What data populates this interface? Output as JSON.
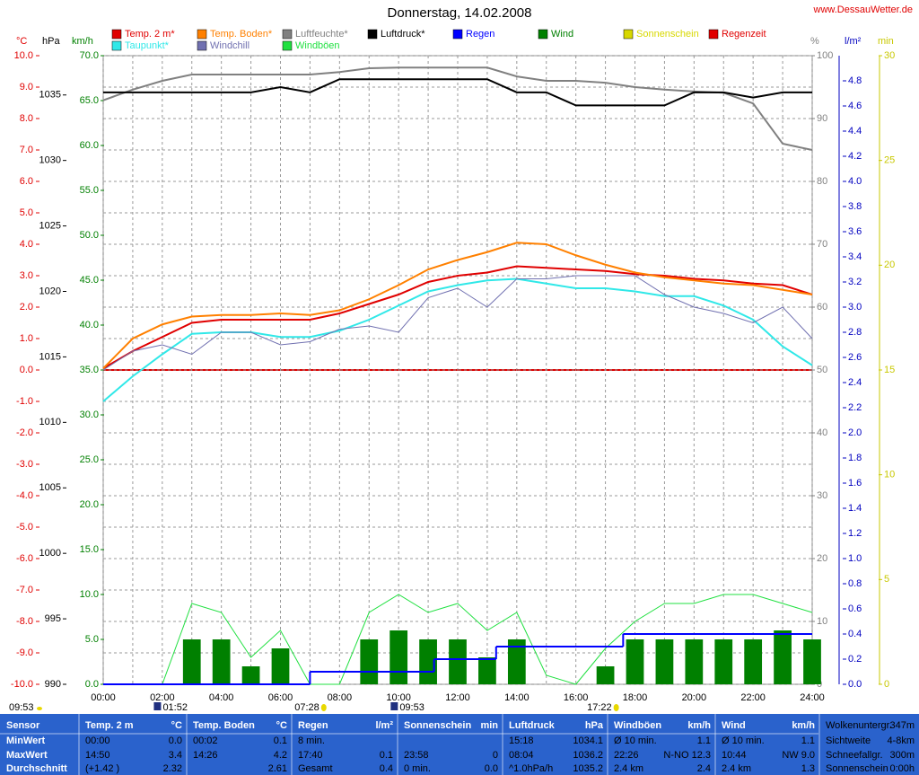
{
  "chart_data": {
    "type": "weather",
    "title": "Donnerstag, 14.02.2008",
    "site": "www.DessauWetter.de",
    "x": [
      0,
      1,
      2,
      3,
      4,
      5,
      6,
      7,
      8,
      9,
      10,
      11,
      12,
      13,
      14,
      15,
      16,
      17,
      18,
      19,
      20,
      21,
      22,
      23,
      24
    ],
    "xlim": [
      0,
      24
    ],
    "xticks": [
      {
        "value": 0,
        "label": "00:00"
      },
      {
        "value": 2,
        "label": "02:00"
      },
      {
        "value": 4,
        "label": "04:00"
      },
      {
        "value": 6,
        "label": "06:00"
      },
      {
        "value": 8,
        "label": "08:00"
      },
      {
        "value": 10,
        "label": "10:00"
      },
      {
        "value": 12,
        "label": "12:00"
      },
      {
        "value": 14,
        "label": "14:00"
      },
      {
        "value": 16,
        "label": "16:00"
      },
      {
        "value": 18,
        "label": "18:00"
      },
      {
        "value": 20,
        "label": "20:00"
      },
      {
        "value": 22,
        "label": "22:00"
      },
      {
        "value": 24,
        "label": "24:00"
      }
    ],
    "xminor": [
      1,
      3,
      5,
      7,
      9,
      11,
      13,
      15,
      17,
      19,
      21,
      23
    ],
    "axes": [
      {
        "key": "temp",
        "label": "°C",
        "color": "#e00000",
        "lim": [
          -10,
          10
        ],
        "grid": true,
        "ticks": [
          {
            "value": -10,
            "label": "-10.0"
          },
          {
            "value": -9,
            "label": "-9.0"
          },
          {
            "value": -8,
            "label": "-8.0"
          },
          {
            "value": -7,
            "label": "-7.0"
          },
          {
            "value": -6,
            "label": "-6.0"
          },
          {
            "value": -5,
            "label": "-5.0"
          },
          {
            "value": -4,
            "label": "-4.0"
          },
          {
            "value": -3,
            "label": "-3.0"
          },
          {
            "value": -2,
            "label": "-2.0"
          },
          {
            "value": -1,
            "label": "-1.0"
          },
          {
            "value": 0,
            "label": "0.0"
          },
          {
            "value": 1,
            "label": "1.0"
          },
          {
            "value": 2,
            "label": "2.0"
          },
          {
            "value": 3,
            "label": "3.0"
          },
          {
            "value": 4,
            "label": "4.0"
          },
          {
            "value": 5,
            "label": "5.0"
          },
          {
            "value": 6,
            "label": "6.0"
          },
          {
            "value": 7,
            "label": "7.0"
          },
          {
            "value": 8,
            "label": "8.0"
          },
          {
            "value": 9,
            "label": "9.0"
          },
          {
            "value": 10,
            "label": "10.0"
          }
        ]
      },
      {
        "key": "hpa",
        "label": "hPa",
        "color": "#000000",
        "lim": [
          990,
          1038
        ],
        "grid": false,
        "ticks": [
          990,
          995,
          1000,
          1005,
          1010,
          1015,
          1020,
          1025,
          1030,
          1035
        ]
      },
      {
        "key": "kmh",
        "label": "km/h",
        "color": "#008000",
        "lim": [
          0,
          70
        ],
        "grid": false,
        "ticks": [
          {
            "value": 0,
            "label": "0.0"
          },
          {
            "value": 5,
            "label": "5.0"
          },
          {
            "value": 10,
            "label": "10.0"
          },
          {
            "value": 15,
            "label": "15.0"
          },
          {
            "value": 20,
            "label": "20.0"
          },
          {
            "value": 25,
            "label": "25.0"
          },
          {
            "value": 30,
            "label": "30.0"
          },
          {
            "value": 35,
            "label": "35.0"
          },
          {
            "value": 40,
            "label": "40.0"
          },
          {
            "value": 45,
            "label": "45.0"
          },
          {
            "value": 50,
            "label": "50.0"
          },
          {
            "value": 55,
            "label": "55.0"
          },
          {
            "value": 60,
            "label": "60.0"
          },
          {
            "value": 65,
            "label": "65.0"
          },
          {
            "value": 70,
            "label": "70.0"
          }
        ]
      },
      {
        "key": "pct",
        "label": "%",
        "color": "#808080",
        "lim": [
          0,
          100
        ],
        "grid": false,
        "ticks": [
          0,
          10,
          20,
          30,
          40,
          50,
          60,
          70,
          80,
          90,
          100
        ]
      },
      {
        "key": "lm2",
        "label": "l/m²",
        "color": "#0000c0",
        "lim": [
          0,
          5
        ],
        "grid": false,
        "ticks": [
          {
            "value": 0,
            "label": "0.0"
          },
          {
            "value": 0.2,
            "label": "0.2"
          },
          {
            "value": 0.4,
            "label": "0.4"
          },
          {
            "value": 0.6,
            "label": "0.6"
          },
          {
            "value": 0.8,
            "label": "0.8"
          },
          {
            "value": 1,
            "label": "1.0"
          },
          {
            "value": 1.2,
            "label": "1.2"
          },
          {
            "value": 1.4,
            "label": "1.4"
          },
          {
            "value": 1.6,
            "label": "1.6"
          },
          {
            "value": 1.8,
            "label": "1.8"
          },
          {
            "value": 2,
            "label": "2.0"
          },
          {
            "value": 2.2,
            "label": "2.2"
          },
          {
            "value": 2.4,
            "label": "2.4"
          },
          {
            "value": 2.6,
            "label": "2.6"
          },
          {
            "value": 2.8,
            "label": "2.8"
          },
          {
            "value": 3,
            "label": "3.0"
          },
          {
            "value": 3.2,
            "label": "3.2"
          },
          {
            "value": 3.4,
            "label": "3.4"
          },
          {
            "value": 3.6,
            "label": "3.6"
          },
          {
            "value": 3.8,
            "label": "3.8"
          },
          {
            "value": 4,
            "label": "4.0"
          },
          {
            "value": 4.2,
            "label": "4.2"
          },
          {
            "value": 4.4,
            "label": "4.4"
          },
          {
            "value": 4.6,
            "label": "4.6"
          },
          {
            "value": 4.8,
            "label": "4.8"
          }
        ]
      },
      {
        "key": "min",
        "label": "min",
        "color": "#c8c800",
        "lim": [
          0,
          30
        ],
        "grid": false,
        "ticks": [
          0,
          5,
          10,
          15,
          20,
          25,
          30
        ]
      }
    ],
    "series": [
      {
        "name": "Temp. 2 m*",
        "color": "#e00000",
        "axis": "temp",
        "kind": "line",
        "values": [
          0.05,
          0.6,
          1.05,
          1.5,
          1.6,
          1.6,
          1.6,
          1.6,
          1.8,
          2.1,
          2.4,
          2.8,
          3.0,
          3.1,
          3.3,
          3.25,
          3.2,
          3.15,
          3.05,
          3.0,
          2.9,
          2.85,
          2.75,
          2.7,
          2.4
        ]
      },
      {
        "name": "Temp. Boden*",
        "color": "#ff8000",
        "axis": "temp",
        "kind": "line",
        "values": [
          0.05,
          1.0,
          1.45,
          1.7,
          1.75,
          1.75,
          1.8,
          1.75,
          1.9,
          2.25,
          2.7,
          3.2,
          3.5,
          3.75,
          4.05,
          4.0,
          3.65,
          3.35,
          3.1,
          2.95,
          2.85,
          2.75,
          2.7,
          2.55,
          2.4
        ]
      },
      {
        "name": "Luftfeuchte*",
        "color": "#808080",
        "axis": "pct",
        "kind": "line",
        "values": [
          92.9,
          94.6,
          96,
          97,
          97,
          97,
          97,
          97,
          97.4,
          98,
          98.1,
          98.1,
          98.1,
          98.1,
          96.7,
          96,
          96,
          95.7,
          95,
          94.6,
          94.3,
          94.1,
          92.4,
          86,
          85
        ]
      },
      {
        "name": "Luftdruck*",
        "color": "#000000",
        "axis": "hpa",
        "kind": "line",
        "values": [
          1035.2,
          1035.2,
          1035.2,
          1035.2,
          1035.2,
          1035.2,
          1035.6,
          1035.2,
          1036.2,
          1036.2,
          1036.2,
          1036.2,
          1036.2,
          1036.2,
          1035.2,
          1035.2,
          1034.2,
          1034.2,
          1034.2,
          1034.2,
          1035.2,
          1035.2,
          1034.8,
          1035.2,
          1035.2
        ]
      },
      {
        "name": "Regen",
        "color": "#0000ff",
        "axis": "lm2",
        "kind": "step",
        "x": [
          0,
          7.0,
          11.2,
          13.3,
          17.6,
          24
        ],
        "values": [
          0,
          0.1,
          0.2,
          0.3,
          0.4,
          0.4
        ]
      },
      {
        "name": "Wind",
        "color": "#008000",
        "axis": "kmh",
        "kind": "bar",
        "values": [
          0,
          0,
          0,
          5,
          5,
          2,
          4,
          0,
          0,
          5,
          6,
          5,
          5,
          3,
          5,
          0,
          0,
          2,
          5,
          5,
          5,
          5,
          5,
          6,
          5
        ]
      },
      {
        "name": "Sonnenschein",
        "color": "#d8d800"
      },
      {
        "name": "Regenzeit",
        "color": "#e00000"
      },
      {
        "name": "Taupunkt*",
        "color": "#30e8e8",
        "axis": "temp",
        "kind": "line",
        "values": [
          -1.0,
          -0.2,
          0.5,
          1.15,
          1.2,
          1.2,
          1.05,
          1.05,
          1.25,
          1.6,
          2.05,
          2.5,
          2.7,
          2.85,
          2.9,
          2.75,
          2.6,
          2.6,
          2.5,
          2.35,
          2.35,
          2.05,
          1.6,
          0.75,
          0.15
        ]
      },
      {
        "name": "Windchill",
        "color": "#7070b0",
        "axis": "temp",
        "kind": "line",
        "values": [
          0.0,
          0.6,
          0.8,
          0.5,
          1.2,
          1.2,
          0.8,
          0.9,
          1.3,
          1.4,
          1.2,
          2.3,
          2.6,
          2.0,
          2.9,
          2.9,
          3.0,
          3.0,
          3.0,
          2.4,
          2.0,
          1.8,
          1.5,
          2.0,
          1.0
        ]
      },
      {
        "name": "Windböen",
        "color": "#20e040",
        "axis": "kmh",
        "kind": "line",
        "values": [
          0,
          0,
          0,
          9,
          8,
          3,
          6,
          0,
          0,
          8,
          10,
          8,
          9,
          6,
          8,
          1,
          0,
          4,
          7,
          9,
          9,
          10,
          10,
          9,
          8
        ]
      }
    ],
    "footer_left": "09:53",
    "moon_markers": [
      "01:52",
      "09:53"
    ],
    "sun_markers": [
      "07:28",
      "17:22"
    ]
  },
  "table": {
    "columns": [
      {
        "header": [
          "Sensor"
        ],
        "rows": [
          [
            "MinWert"
          ],
          [
            "MaxWert"
          ],
          [
            "Durchschnitt"
          ]
        ]
      },
      {
        "header": [
          "Temp. 2 m",
          "°C"
        ],
        "rows": [
          [
            "00:00",
            "0.0"
          ],
          [
            "14:50",
            "3.4"
          ],
          [
            "(+1.42 )",
            "2.32"
          ]
        ]
      },
      {
        "header": [
          "Temp. Boden",
          "°C"
        ],
        "rows": [
          [
            "00:02",
            "0.1"
          ],
          [
            "14:26",
            "4.2"
          ],
          [
            null,
            "2.61"
          ]
        ]
      },
      {
        "header": [
          "Regen",
          "l/m²"
        ],
        "rows": [
          [
            "8 min.",
            null
          ],
          [
            "17:40",
            "0.1"
          ],
          [
            "Gesamt",
            "0.4"
          ]
        ]
      },
      {
        "header": [
          "Sonnenschein",
          "min"
        ],
        "rows": [
          [
            null,
            null
          ],
          [
            "23:58",
            "0"
          ],
          [
            "0 min.",
            "0.0"
          ]
        ]
      },
      {
        "header": [
          "Luftdruck",
          "hPa"
        ],
        "rows": [
          [
            "15:18",
            "1034.1"
          ],
          [
            "08:04",
            "1036.2"
          ],
          [
            "^1.0hPa/h",
            "1035.2"
          ]
        ]
      },
      {
        "header": [
          "Windböen",
          "km/h"
        ],
        "rows": [
          [
            "Ø 10 min.",
            "1.1"
          ],
          [
            "22:26",
            "N-NO 12.3"
          ],
          [
            "2.4 km",
            "2.4"
          ]
        ]
      },
      {
        "header": [
          "Wind",
          "km/h"
        ],
        "rows": [
          [
            "Ø 10 min.",
            "1.1"
          ],
          [
            "10:44",
            "NW 9.0"
          ],
          [
            "2.4 km",
            "1.3"
          ]
        ]
      },
      {
        "header": [
          "Wolkenuntergr.",
          "347m"
        ],
        "rows": [
          [
            "Sichtweite",
            "4-8km"
          ],
          [
            "Schneefallgr.",
            "300m"
          ],
          [
            "Sonnenschein",
            "0:00h"
          ]
        ]
      }
    ]
  }
}
